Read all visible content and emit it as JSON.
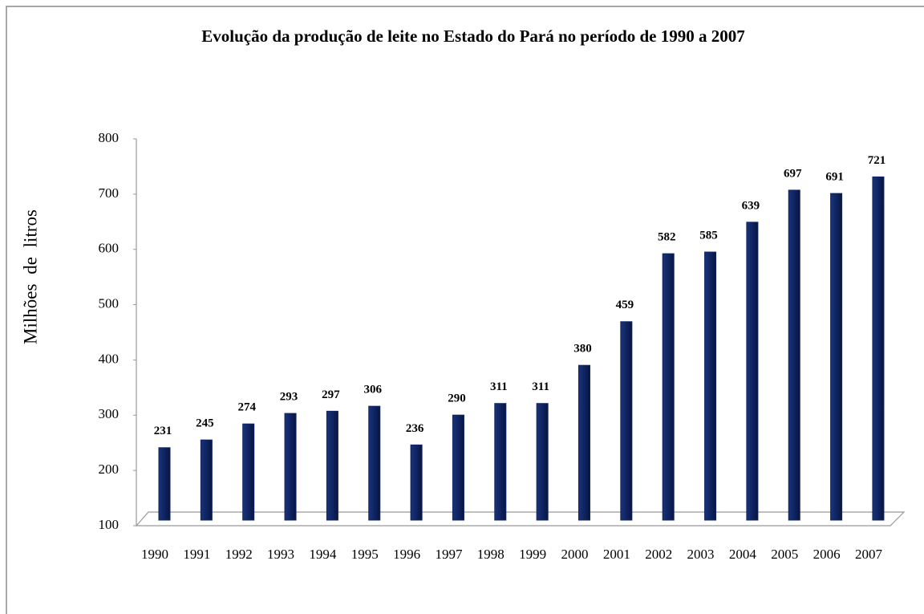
{
  "chart_data": {
    "type": "bar",
    "title": "Evolução da produção de leite no Estado do Pará no período de 1990 a 2007",
    "ylabel": "Milhões de litros",
    "categories": [
      "1990",
      "1991",
      "1992",
      "1993",
      "1994",
      "1995",
      "1996",
      "1997",
      "1998",
      "1999",
      "2000",
      "2001",
      "2002",
      "2003",
      "2004",
      "2005",
      "2006",
      "2007"
    ],
    "values": [
      231,
      245,
      274,
      293,
      297,
      306,
      236,
      290,
      311,
      311,
      380,
      459,
      582,
      585,
      639,
      697,
      691,
      721
    ],
    "color": "#0f2461",
    "ylim": [
      100,
      800
    ],
    "yticks": [
      100,
      200,
      300,
      400,
      500,
      600,
      700,
      800
    ],
    "grid": false
  }
}
